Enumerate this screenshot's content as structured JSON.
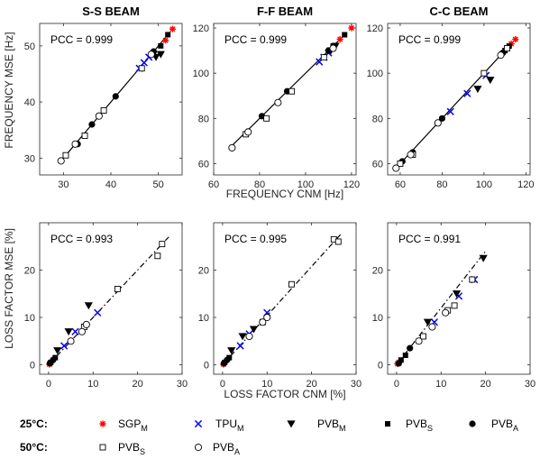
{
  "figure": {
    "column_titles": [
      "S-S BEAM",
      "F-F BEAM",
      "C-C BEAM"
    ],
    "row_labels": {
      "top_ylabel": "FREQUENCY MSE [Hz]",
      "top_xlabel": "FREQUENCY CNM [Hz]",
      "bottom_ylabel": "LOSS FACTOR MSE [%]",
      "bottom_xlabel": "LOSS FACTOR CNM [%]"
    },
    "legend": {
      "temp_25": "25°C:",
      "temp_50": "50°C:",
      "entries_25": [
        {
          "base": "SGP",
          "sub": "M",
          "marker": "asterisk",
          "color": "#ff0000"
        },
        {
          "base": "TPU",
          "sub": "M",
          "marker": "x",
          "color": "#0000ff"
        },
        {
          "base": "PVB",
          "sub": "M",
          "marker": "triangle-down",
          "color": "#000000"
        },
        {
          "base": "PVB",
          "sub": "S",
          "marker": "square-filled",
          "color": "#000000"
        },
        {
          "base": "PVB",
          "sub": "A",
          "marker": "circle-filled",
          "color": "#000000"
        }
      ],
      "entries_50": [
        {
          "base": "PVB",
          "sub": "S",
          "marker": "square-open",
          "color": "#000000"
        },
        {
          "base": "PVB",
          "sub": "A",
          "marker": "circle-open",
          "color": "#000000"
        }
      ]
    }
  },
  "chart_data": [
    {
      "type": "scatter",
      "id": "ss-frequency",
      "title": "S-S BEAM",
      "xlabel": "",
      "ylabel": "FREQUENCY MSE [Hz]",
      "xlim": [
        25,
        55
      ],
      "ylim": [
        27,
        54
      ],
      "xticks": [
        30,
        40,
        50
      ],
      "yticks": [
        30,
        40,
        50
      ],
      "annotation": "PCC = 0.999",
      "fit_line": [
        [
          29.5,
          29.5
        ],
        [
          52.5,
          52.5
        ]
      ],
      "fit_style": "solid",
      "series": [
        {
          "name": "SGP_M 25°C",
          "marker": "asterisk",
          "points": [
            [
              51.5,
              51
            ],
            [
              53,
              53
            ]
          ]
        },
        {
          "name": "TPU_M 25°C",
          "marker": "x",
          "points": [
            [
              46,
              46
            ],
            [
              47,
              47
            ],
            [
              48,
              48
            ]
          ]
        },
        {
          "name": "PVB_M 25°C",
          "marker": "triangle-down",
          "points": [
            [
              49.5,
              48
            ],
            [
              50.5,
              48.5
            ]
          ]
        },
        {
          "name": "PVB_S 25°C",
          "marker": "square-filled",
          "points": [
            [
              50.5,
              50
            ],
            [
              52,
              52
            ]
          ]
        },
        {
          "name": "PVB_A 25°C",
          "marker": "circle-filled",
          "points": [
            [
              33,
              32.5
            ],
            [
              36,
              36
            ],
            [
              41,
              41
            ],
            [
              49,
              49
            ]
          ]
        },
        {
          "name": "PVB_S 50°C",
          "marker": "square-open",
          "points": [
            [
              30.5,
              30.5
            ],
            [
              34.5,
              34
            ],
            [
              38.5,
              38.5
            ],
            [
              46.5,
              46
            ]
          ]
        },
        {
          "name": "PVB_A 50°C",
          "marker": "circle-open",
          "points": [
            [
              29.5,
              29.5
            ],
            [
              32.5,
              32.5
            ],
            [
              37.5,
              37.5
            ],
            [
              48.5,
              48.5
            ]
          ]
        }
      ]
    },
    {
      "type": "scatter",
      "id": "ff-frequency",
      "title": "F-F BEAM",
      "xlabel": "",
      "ylabel": "",
      "xlim": [
        60,
        122
      ],
      "ylim": [
        55,
        122
      ],
      "xticks": [
        60,
        80,
        100,
        120
      ],
      "yticks": [
        60,
        80,
        100,
        120
      ],
      "annotation": "PCC = 0.999",
      "fit_line": [
        [
          68,
          68
        ],
        [
          118,
          118
        ]
      ],
      "fit_style": "solid",
      "series": [
        {
          "name": "SGP_M 25°C",
          "marker": "asterisk",
          "points": [
            [
              115,
              115
            ],
            [
              120,
              120
            ]
          ]
        },
        {
          "name": "TPU_M 25°C",
          "marker": "x",
          "points": [
            [
              106,
              105
            ],
            [
              108,
              107
            ],
            [
              110,
              109
            ]
          ]
        },
        {
          "name": "PVB_M 25°C",
          "marker": "triangle-down",
          "points": [
            [
              111,
              110
            ],
            [
              113,
              112
            ]
          ]
        },
        {
          "name": "PVB_S 25°C",
          "marker": "square-filled",
          "points": [
            [
              112,
              112
            ],
            [
              117,
              117
            ]
          ]
        },
        {
          "name": "PVB_A 25°C",
          "marker": "circle-filled",
          "points": [
            [
              75,
              74
            ],
            [
              81,
              81
            ],
            [
              92,
              92
            ],
            [
              110,
              110
            ]
          ]
        },
        {
          "name": "PVB_S 50°C",
          "marker": "square-open",
          "points": [
            [
              74,
              73
            ],
            [
              83,
              80
            ],
            [
              94,
              92
            ],
            [
              108,
              107
            ]
          ]
        },
        {
          "name": "PVB_A 50°C",
          "marker": "circle-open",
          "points": [
            [
              68,
              67
            ],
            [
              75,
              74
            ],
            [
              88,
              87
            ],
            [
              112,
              111
            ]
          ]
        }
      ]
    },
    {
      "type": "scatter",
      "id": "cc-frequency",
      "title": "C-C BEAM",
      "xlabel": "",
      "ylabel": "",
      "xlim": [
        54,
        122
      ],
      "ylim": [
        55,
        122
      ],
      "xticks": [
        60,
        80,
        100,
        120
      ],
      "yticks": [
        60,
        80,
        100,
        120
      ],
      "annotation": "PCC = 0.999",
      "fit_line": [
        [
          58,
          58
        ],
        [
          114,
          114
        ]
      ],
      "fit_style": "solid",
      "series": [
        {
          "name": "SGP_M 25°C",
          "marker": "asterisk",
          "points": [
            [
              113,
              113
            ],
            [
              115,
              115
            ]
          ]
        },
        {
          "name": "TPU_M 25°C",
          "marker": "x",
          "points": [
            [
              84,
              83
            ],
            [
              92,
              91
            ],
            [
              101,
              99
            ]
          ]
        },
        {
          "name": "PVB_M 25°C",
          "marker": "triangle-down",
          "points": [
            [
              97,
              93
            ],
            [
              103,
              97
            ]
          ]
        },
        {
          "name": "PVB_S 25°C",
          "marker": "square-filled",
          "points": [
            [
              110,
              110
            ],
            [
              112,
              112
            ]
          ]
        },
        {
          "name": "PVB_A 25°C",
          "marker": "circle-filled",
          "points": [
            [
              61,
              61
            ],
            [
              66,
              65
            ],
            [
              80,
              80
            ],
            [
              109,
              109
            ]
          ]
        },
        {
          "name": "PVB_S 50°C",
          "marker": "square-open",
          "points": [
            [
              60,
              60
            ],
            [
              66,
              64
            ],
            [
              100,
              100
            ],
            [
              111,
              111
            ]
          ]
        },
        {
          "name": "PVB_A 50°C",
          "marker": "circle-open",
          "points": [
            [
              58,
              58
            ],
            [
              65,
              64
            ],
            [
              78,
              78
            ],
            [
              108,
              108
            ]
          ]
        }
      ]
    },
    {
      "type": "scatter",
      "id": "ss-loss",
      "title": "",
      "xlabel": "",
      "ylabel": "LOSS FACTOR MSE [%]",
      "xlim": [
        -2,
        30
      ],
      "ylim": [
        -2,
        30
      ],
      "xticks": [
        0,
        10,
        20,
        30
      ],
      "yticks": [
        0,
        10,
        20
      ],
      "annotation": "PCC = 0.993",
      "fit_line": [
        [
          0,
          0
        ],
        [
          27,
          27
        ]
      ],
      "fit_style": "dashdot",
      "series": [
        {
          "name": "SGP_M 25°C",
          "marker": "asterisk",
          "points": [
            [
              0.2,
              0.1
            ]
          ]
        },
        {
          "name": "TPU_M 25°C",
          "marker": "x",
          "points": [
            [
              3.5,
              4
            ],
            [
              6,
              7
            ],
            [
              11,
              11
            ]
          ]
        },
        {
          "name": "PVB_M 25°C",
          "marker": "triangle-down",
          "points": [
            [
              2,
              3
            ],
            [
              4.5,
              7
            ],
            [
              9,
              12.5
            ]
          ]
        },
        {
          "name": "PVB_S 25°C",
          "marker": "square-filled",
          "points": [
            [
              0.5,
              0.5
            ],
            [
              1.5,
              1.5
            ]
          ]
        },
        {
          "name": "PVB_A 25°C",
          "marker": "circle-filled",
          "points": [
            [
              0.3,
              0.3
            ],
            [
              1,
              1
            ]
          ]
        },
        {
          "name": "PVB_S 50°C",
          "marker": "square-open",
          "points": [
            [
              8,
              8
            ],
            [
              15.5,
              16
            ],
            [
              24.5,
              23
            ],
            [
              25.5,
              25.5
            ]
          ]
        },
        {
          "name": "PVB_A 50°C",
          "marker": "circle-open",
          "points": [
            [
              5,
              5
            ],
            [
              7.5,
              7
            ],
            [
              8.5,
              8.5
            ]
          ]
        }
      ]
    },
    {
      "type": "scatter",
      "id": "ff-loss",
      "title": "",
      "xlabel": "",
      "ylabel": "",
      "xlim": [
        -2,
        30
      ],
      "ylim": [
        -2,
        30
      ],
      "xticks": [
        0,
        10,
        20,
        30
      ],
      "yticks": [
        0,
        10,
        20
      ],
      "annotation": "PCC = 0.995",
      "fit_line": [
        [
          0,
          0
        ],
        [
          26.5,
          27.5
        ]
      ],
      "fit_style": "dashdot",
      "series": [
        {
          "name": "SGP_M 25°C",
          "marker": "asterisk",
          "points": [
            [
              0.2,
              0.1
            ]
          ]
        },
        {
          "name": "TPU_M 25°C",
          "marker": "x",
          "points": [
            [
              4,
              4
            ],
            [
              6,
              6.5
            ],
            [
              10,
              11
            ]
          ]
        },
        {
          "name": "PVB_M 25°C",
          "marker": "triangle-down",
          "points": [
            [
              2,
              3
            ],
            [
              4.5,
              6
            ],
            [
              7,
              7.5
            ]
          ]
        },
        {
          "name": "PVB_S 25°C",
          "marker": "square-filled",
          "points": [
            [
              0.5,
              0.5
            ],
            [
              1.5,
              1.5
            ]
          ]
        },
        {
          "name": "PVB_A 25°C",
          "marker": "circle-filled",
          "points": [
            [
              0.3,
              0.3
            ],
            [
              1,
              1
            ]
          ]
        },
        {
          "name": "PVB_S 50°C",
          "marker": "square-open",
          "points": [
            [
              9,
              9
            ],
            [
              15.5,
              17
            ],
            [
              25,
              26.5
            ],
            [
              26,
              26
            ]
          ]
        },
        {
          "name": "PVB_A 50°C",
          "marker": "circle-open",
          "points": [
            [
              6,
              6
            ],
            [
              9,
              9
            ],
            [
              10,
              10
            ]
          ]
        }
      ]
    },
    {
      "type": "scatter",
      "id": "cc-loss",
      "title": "",
      "xlabel": "",
      "ylabel": "",
      "xlim": [
        -2,
        30
      ],
      "ylim": [
        -2,
        30
      ],
      "xticks": [
        0,
        10,
        20,
        30
      ],
      "yticks": [
        0,
        10,
        20
      ],
      "annotation": "PCC = 0.991",
      "fit_line": [
        [
          0,
          0
        ],
        [
          20,
          24
        ]
      ],
      "fit_style": "dashdot",
      "series": [
        {
          "name": "SGP_M 25°C",
          "marker": "asterisk",
          "points": [
            [
              0.2,
              0.2
            ],
            [
              0.5,
              0.5
            ]
          ]
        },
        {
          "name": "TPU_M 25°C",
          "marker": "x",
          "points": [
            [
              8.5,
              9
            ],
            [
              14,
              14.5
            ],
            [
              17.5,
              18
            ]
          ]
        },
        {
          "name": "PVB_M 25°C",
          "marker": "triangle-down",
          "points": [
            [
              7,
              9
            ],
            [
              13.5,
              15
            ],
            [
              19.5,
              22.5
            ]
          ]
        },
        {
          "name": "PVB_S 25°C",
          "marker": "square-filled",
          "points": [
            [
              1,
              1
            ],
            [
              2,
              2
            ]
          ]
        },
        {
          "name": "PVB_A 25°C",
          "marker": "circle-filled",
          "points": [
            [
              0.5,
              0.3
            ],
            [
              3,
              3.5
            ]
          ]
        },
        {
          "name": "PVB_S 50°C",
          "marker": "square-open",
          "points": [
            [
              6,
              6
            ],
            [
              11.5,
              11.5
            ],
            [
              13,
              12.5
            ],
            [
              17,
              18
            ]
          ]
        },
        {
          "name": "PVB_A 50°C",
          "marker": "circle-open",
          "points": [
            [
              5,
              5
            ],
            [
              8,
              8
            ],
            [
              11,
              11
            ]
          ]
        }
      ]
    }
  ]
}
